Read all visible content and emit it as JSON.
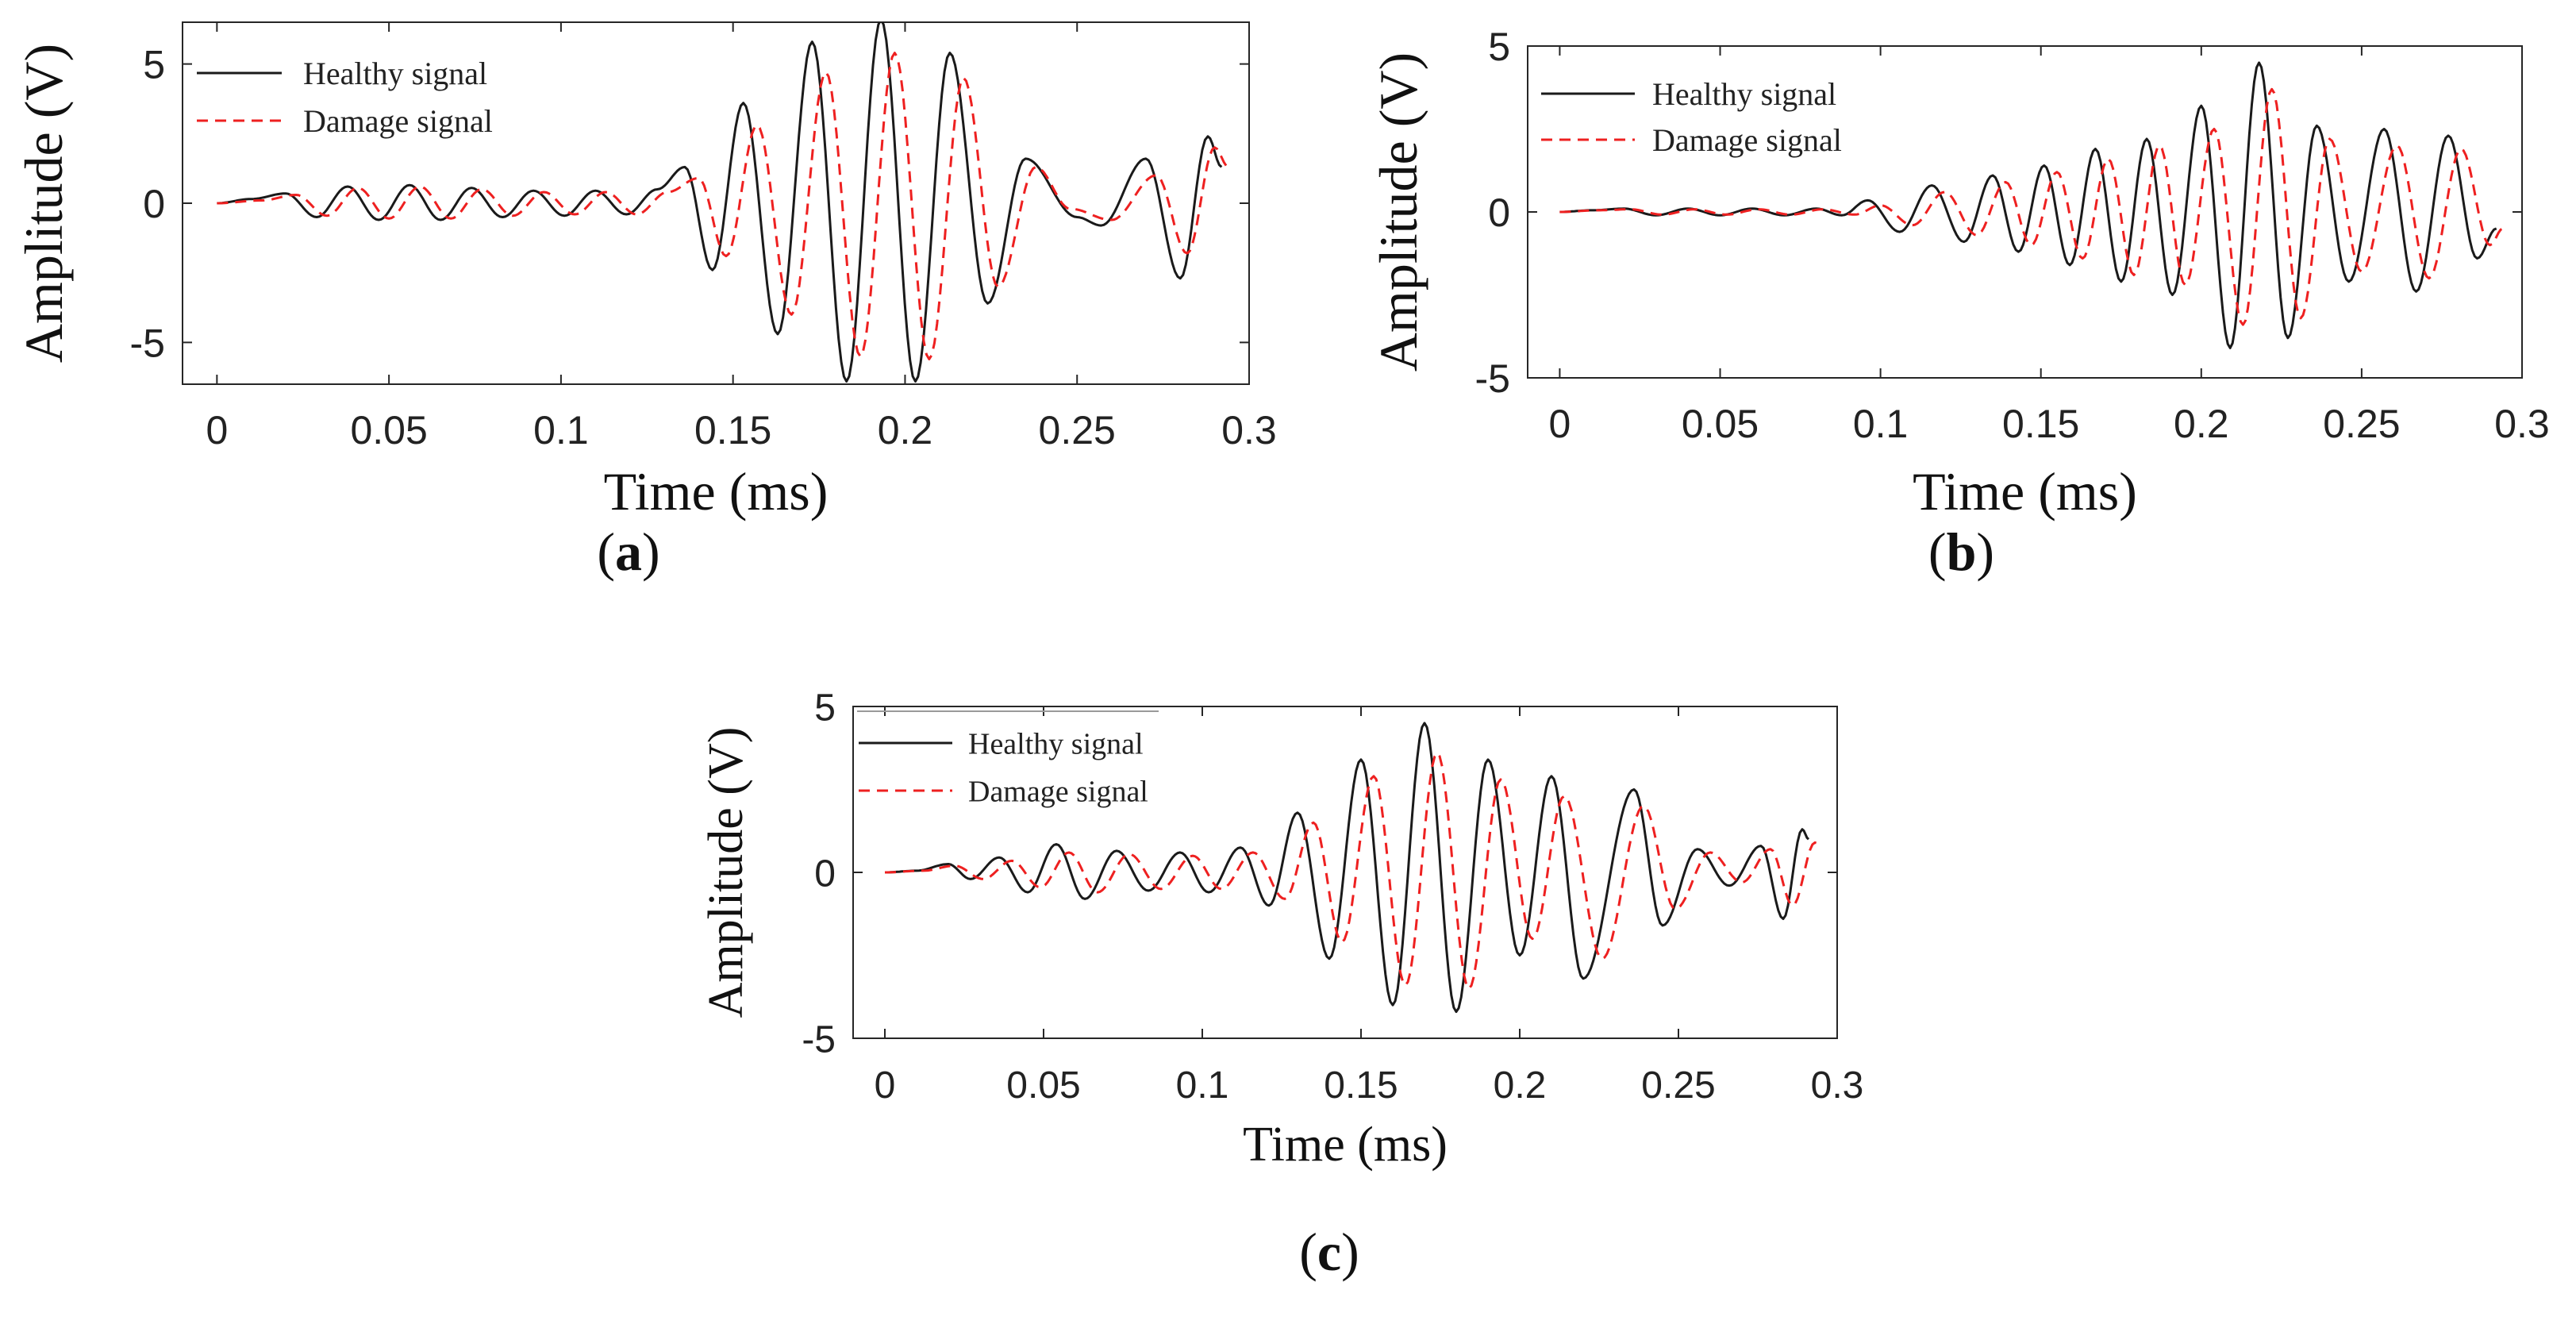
{
  "colors": {
    "healthy": "#1a1a1a",
    "damage": "#ee2020",
    "axis": "#262626",
    "background": "#ffffff"
  },
  "chart_data": [
    {
      "id": "a",
      "type": "line",
      "panel_label": "(a)",
      "panel_letter": "a",
      "xlabel": "Time (ms)",
      "ylabel": "Amplitude (V)",
      "xlim": [
        -0.01,
        0.3
      ],
      "ylim": [
        -6.5,
        6.5
      ],
      "xticks": [
        0,
        0.05,
        0.1,
        0.15,
        0.2,
        0.25,
        0.3
      ],
      "xtick_labels": [
        "0",
        "0.05",
        "0.1",
        "0.15",
        "0.2",
        "0.25",
        "0.3"
      ],
      "yticks": [
        -5,
        0,
        5
      ],
      "ytick_labels": [
        "-5",
        "0",
        "5"
      ],
      "legend": [
        "Healthy signal",
        "Damage signal"
      ],
      "legend_position": "top-left",
      "grid": false,
      "series": [
        {
          "name": "Healthy signal",
          "style": "solid",
          "t_end": 0.292,
          "peaks": [
            [
              0.0,
              0.0
            ],
            [
              0.01,
              0.15
            ],
            [
              0.02,
              0.35
            ],
            [
              0.029,
              -0.5
            ],
            [
              0.038,
              0.6
            ],
            [
              0.047,
              -0.6
            ],
            [
              0.056,
              0.65
            ],
            [
              0.065,
              -0.6
            ],
            [
              0.074,
              0.55
            ],
            [
              0.083,
              -0.5
            ],
            [
              0.092,
              0.45
            ],
            [
              0.101,
              -0.45
            ],
            [
              0.11,
              0.45
            ],
            [
              0.119,
              -0.4
            ],
            [
              0.128,
              0.5
            ],
            [
              0.136,
              1.3
            ],
            [
              0.144,
              -2.4
            ],
            [
              0.153,
              3.6
            ],
            [
              0.163,
              -4.7
            ],
            [
              0.173,
              5.8
            ],
            [
              0.183,
              -6.4
            ],
            [
              0.193,
              6.6
            ],
            [
              0.203,
              -6.4
            ],
            [
              0.213,
              5.4
            ],
            [
              0.224,
              -3.6
            ],
            [
              0.235,
              1.6
            ],
            [
              0.25,
              -0.5
            ],
            [
              0.257,
              -0.8
            ],
            [
              0.27,
              1.6
            ],
            [
              0.28,
              -2.7
            ],
            [
              0.288,
              2.4
            ],
            [
              0.292,
              1.3
            ]
          ]
        },
        {
          "name": "Damage signal",
          "style": "dashed",
          "t_end": 0.294,
          "peaks": [
            [
              0.0,
              0.0
            ],
            [
              0.013,
              0.1
            ],
            [
              0.023,
              0.3
            ],
            [
              0.032,
              -0.45
            ],
            [
              0.041,
              0.55
            ],
            [
              0.05,
              -0.55
            ],
            [
              0.059,
              0.6
            ],
            [
              0.068,
              -0.55
            ],
            [
              0.077,
              0.5
            ],
            [
              0.086,
              -0.45
            ],
            [
              0.095,
              0.4
            ],
            [
              0.104,
              -0.4
            ],
            [
              0.113,
              0.4
            ],
            [
              0.122,
              -0.4
            ],
            [
              0.131,
              0.4
            ],
            [
              0.14,
              0.9
            ],
            [
              0.148,
              -1.9
            ],
            [
              0.157,
              2.8
            ],
            [
              0.167,
              -4.0
            ],
            [
              0.177,
              4.7
            ],
            [
              0.187,
              -5.5
            ],
            [
              0.197,
              5.4
            ],
            [
              0.207,
              -5.6
            ],
            [
              0.217,
              4.5
            ],
            [
              0.227,
              -3.0
            ],
            [
              0.238,
              1.3
            ],
            [
              0.248,
              -0.2
            ],
            [
              0.26,
              -0.6
            ],
            [
              0.273,
              1.0
            ],
            [
              0.282,
              -1.8
            ],
            [
              0.29,
              2.0
            ],
            [
              0.294,
              1.3
            ]
          ]
        }
      ]
    },
    {
      "id": "b",
      "type": "line",
      "panel_label": "(b)",
      "panel_letter": "b",
      "xlabel": "Time (ms)",
      "ylabel": "Amplitude (V)",
      "xlim": [
        -0.01,
        0.3
      ],
      "ylim": [
        -5,
        5
      ],
      "xticks": [
        0,
        0.05,
        0.1,
        0.15,
        0.2,
        0.25,
        0.3
      ],
      "xtick_labels": [
        "0",
        "0.05",
        "0.1",
        "0.15",
        "0.2",
        "0.25",
        "0.3"
      ],
      "yticks": [
        -5,
        0,
        5
      ],
      "ytick_labels": [
        "-5",
        "0",
        "5"
      ],
      "legend": [
        "Healthy signal",
        "Damage signal"
      ],
      "legend_position": "top-left",
      "grid": false,
      "series": [
        {
          "name": "Healthy signal",
          "style": "solid",
          "t_end": 0.292,
          "peaks": [
            [
              0.0,
              0.0
            ],
            [
              0.01,
              0.05
            ],
            [
              0.02,
              0.1
            ],
            [
              0.03,
              -0.1
            ],
            [
              0.04,
              0.1
            ],
            [
              0.05,
              -0.1
            ],
            [
              0.06,
              0.1
            ],
            [
              0.07,
              -0.1
            ],
            [
              0.08,
              0.1
            ],
            [
              0.088,
              -0.1
            ],
            [
              0.096,
              0.35
            ],
            [
              0.106,
              -0.6
            ],
            [
              0.116,
              0.8
            ],
            [
              0.126,
              -0.9
            ],
            [
              0.135,
              1.1
            ],
            [
              0.143,
              -1.2
            ],
            [
              0.151,
              1.4
            ],
            [
              0.159,
              -1.6
            ],
            [
              0.167,
              1.9
            ],
            [
              0.175,
              -2.1
            ],
            [
              0.183,
              2.2
            ],
            [
              0.191,
              -2.5
            ],
            [
              0.2,
              3.2
            ],
            [
              0.209,
              -4.1
            ],
            [
              0.218,
              4.5
            ],
            [
              0.227,
              -3.8
            ],
            [
              0.236,
              2.6
            ],
            [
              0.246,
              -2.1
            ],
            [
              0.257,
              2.5
            ],
            [
              0.267,
              -2.4
            ],
            [
              0.277,
              2.3
            ],
            [
              0.286,
              -1.4
            ],
            [
              0.292,
              -0.5
            ]
          ]
        },
        {
          "name": "Damage signal",
          "style": "dashed",
          "t_end": 0.294,
          "peaks": [
            [
              0.0,
              0.0
            ],
            [
              0.012,
              0.05
            ],
            [
              0.022,
              0.08
            ],
            [
              0.032,
              -0.08
            ],
            [
              0.042,
              0.08
            ],
            [
              0.052,
              -0.08
            ],
            [
              0.062,
              0.08
            ],
            [
              0.072,
              -0.08
            ],
            [
              0.082,
              0.08
            ],
            [
              0.092,
              -0.08
            ],
            [
              0.1,
              0.2
            ],
            [
              0.11,
              -0.4
            ],
            [
              0.12,
              0.6
            ],
            [
              0.13,
              -0.7
            ],
            [
              0.139,
              0.9
            ],
            [
              0.147,
              -1.0
            ],
            [
              0.155,
              1.2
            ],
            [
              0.163,
              -1.4
            ],
            [
              0.171,
              1.6
            ],
            [
              0.179,
              -1.9
            ],
            [
              0.187,
              2.0
            ],
            [
              0.195,
              -2.2
            ],
            [
              0.204,
              2.5
            ],
            [
              0.213,
              -3.4
            ],
            [
              0.222,
              3.7
            ],
            [
              0.231,
              -3.2
            ],
            [
              0.24,
              2.2
            ],
            [
              0.25,
              -1.8
            ],
            [
              0.261,
              2.0
            ],
            [
              0.271,
              -2.0
            ],
            [
              0.281,
              1.9
            ],
            [
              0.29,
              -1.0
            ],
            [
              0.294,
              -0.5
            ]
          ]
        }
      ]
    },
    {
      "id": "c",
      "type": "line",
      "panel_label": "(c)",
      "panel_letter": "c",
      "xlabel": "Time (ms)",
      "ylabel": "Amplitude (V)",
      "xlim": [
        -0.01,
        0.3
      ],
      "ylim": [
        -5,
        5
      ],
      "xticks": [
        0,
        0.05,
        0.1,
        0.15,
        0.2,
        0.25,
        0.3
      ],
      "xtick_labels": [
        "0",
        "0.05",
        "0.1",
        "0.15",
        "0.2",
        "0.25",
        "0.3"
      ],
      "yticks": [
        -5,
        0,
        5
      ],
      "ytick_labels": [
        "-5",
        "0",
        "5"
      ],
      "legend": [
        "Healthy signal",
        "Damage signal"
      ],
      "legend_position": "top-left",
      "grid": false,
      "series": [
        {
          "name": "Healthy signal",
          "style": "solid",
          "t_end": 0.291,
          "peaks": [
            [
              0.0,
              0.0
            ],
            [
              0.01,
              0.05
            ],
            [
              0.02,
              0.25
            ],
            [
              0.027,
              -0.2
            ],
            [
              0.036,
              0.45
            ],
            [
              0.045,
              -0.6
            ],
            [
              0.054,
              0.85
            ],
            [
              0.063,
              -0.8
            ],
            [
              0.073,
              0.65
            ],
            [
              0.083,
              -0.55
            ],
            [
              0.093,
              0.6
            ],
            [
              0.102,
              -0.6
            ],
            [
              0.112,
              0.75
            ],
            [
              0.121,
              -1.0
            ],
            [
              0.13,
              1.8
            ],
            [
              0.14,
              -2.6
            ],
            [
              0.15,
              3.4
            ],
            [
              0.16,
              -4.0
            ],
            [
              0.17,
              4.5
            ],
            [
              0.18,
              -4.2
            ],
            [
              0.19,
              3.4
            ],
            [
              0.2,
              -2.5
            ],
            [
              0.21,
              2.9
            ],
            [
              0.22,
              -3.2
            ],
            [
              0.236,
              2.5
            ],
            [
              0.245,
              -1.6
            ],
            [
              0.256,
              0.7
            ],
            [
              0.266,
              -0.4
            ],
            [
              0.276,
              0.8
            ],
            [
              0.283,
              -1.4
            ],
            [
              0.289,
              1.3
            ],
            [
              0.291,
              1.0
            ]
          ]
        },
        {
          "name": "Damage signal",
          "style": "dashed",
          "t_end": 0.295,
          "peaks": [
            [
              0.0,
              0.0
            ],
            [
              0.012,
              0.05
            ],
            [
              0.022,
              0.2
            ],
            [
              0.031,
              -0.2
            ],
            [
              0.04,
              0.35
            ],
            [
              0.049,
              -0.45
            ],
            [
              0.058,
              0.6
            ],
            [
              0.067,
              -0.6
            ],
            [
              0.077,
              0.55
            ],
            [
              0.087,
              -0.5
            ],
            [
              0.097,
              0.5
            ],
            [
              0.106,
              -0.5
            ],
            [
              0.116,
              0.6
            ],
            [
              0.126,
              -0.8
            ],
            [
              0.135,
              1.5
            ],
            [
              0.144,
              -2.1
            ],
            [
              0.154,
              2.9
            ],
            [
              0.164,
              -3.4
            ],
            [
              0.174,
              3.6
            ],
            [
              0.184,
              -3.5
            ],
            [
              0.194,
              2.8
            ],
            [
              0.204,
              -2.0
            ],
            [
              0.214,
              2.3
            ],
            [
              0.226,
              -2.6
            ],
            [
              0.239,
              2.0
            ],
            [
              0.249,
              -1.1
            ],
            [
              0.26,
              0.6
            ],
            [
              0.27,
              -0.3
            ],
            [
              0.279,
              0.7
            ],
            [
              0.286,
              -1.0
            ],
            [
              0.293,
              0.9
            ],
            [
              0.295,
              0.8
            ]
          ]
        }
      ]
    }
  ]
}
